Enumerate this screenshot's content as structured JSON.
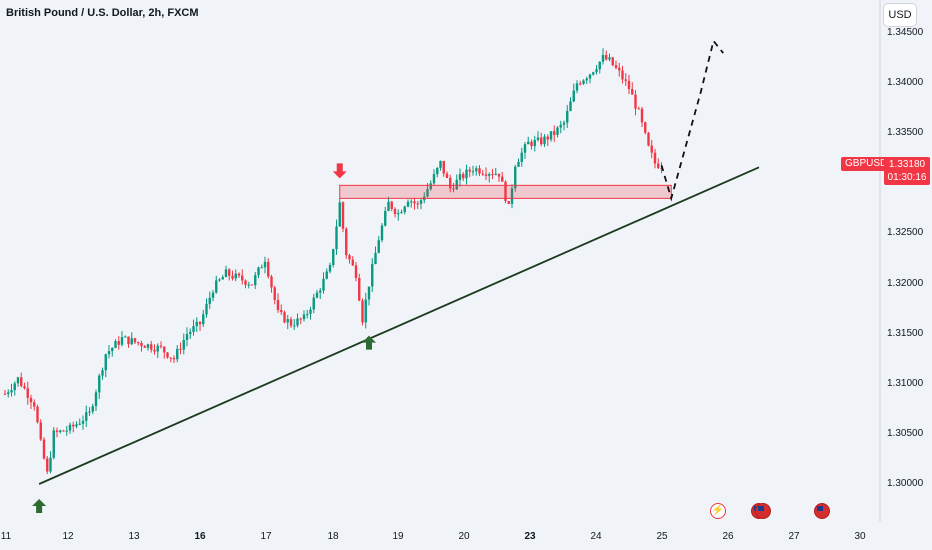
{
  "header": {
    "title": "British Pound / U.S. Dollar, 2h, FXCM"
  },
  "currency_button": {
    "label": "USD"
  },
  "symbol_tag": {
    "label": "GBPUSD"
  },
  "current_price": {
    "value": "1.33180",
    "countdown": "01:30:16"
  },
  "colors": {
    "up": "#089981",
    "down": "#f23645",
    "background": "#f0f3f8",
    "trendline": "#1b3a1e",
    "zone": "#f23645",
    "arrow_up": "#2e6b31",
    "arrow_down": "#f23645"
  },
  "chart_data": {
    "type": "candlestick",
    "title": "British Pound / U.S. Dollar, 2h, FXCM",
    "xlabel": "",
    "ylabel": "",
    "ylim": [
      1.2955,
      1.3455
    ],
    "y_ticks": [
      "1.34500",
      "1.34000",
      "1.33500",
      "1.33000",
      "1.32500",
      "1.32000",
      "1.31500",
      "1.31000",
      "1.30500",
      "1.30000"
    ],
    "x_ticks": [
      {
        "label": "11",
        "bold": false
      },
      {
        "label": "12",
        "bold": false
      },
      {
        "label": "13",
        "bold": false
      },
      {
        "label": "16",
        "bold": true
      },
      {
        "label": "17",
        "bold": false
      },
      {
        "label": "18",
        "bold": false
      },
      {
        "label": "19",
        "bold": false
      },
      {
        "label": "20",
        "bold": false
      },
      {
        "label": "23",
        "bold": true
      },
      {
        "label": "24",
        "bold": false
      },
      {
        "label": "25",
        "bold": false
      },
      {
        "label": "26",
        "bold": false
      },
      {
        "label": "27",
        "bold": false
      },
      {
        "label": "30",
        "bold": false
      }
    ],
    "keypoints": [
      [
        0,
        1.309
      ],
      [
        4,
        1.3105
      ],
      [
        9,
        1.308
      ],
      [
        11,
        1.304
      ],
      [
        13,
        1.301
      ],
      [
        15,
        1.305
      ],
      [
        20,
        1.3055
      ],
      [
        26,
        1.307
      ],
      [
        31,
        1.313
      ],
      [
        36,
        1.3145
      ],
      [
        42,
        1.314
      ],
      [
        48,
        1.3135
      ],
      [
        52,
        1.3125
      ],
      [
        56,
        1.315
      ],
      [
        60,
        1.316
      ],
      [
        64,
        1.3195
      ],
      [
        68,
        1.321
      ],
      [
        72,
        1.3205
      ],
      [
        76,
        1.32
      ],
      [
        80,
        1.3225
      ],
      [
        84,
        1.317
      ],
      [
        88,
        1.316
      ],
      [
        92,
        1.3165
      ],
      [
        96,
        1.319
      ],
      [
        100,
        1.3215
      ],
      [
        103,
        1.328
      ],
      [
        105,
        1.323
      ],
      [
        108,
        1.321
      ],
      [
        110,
        1.3165
      ],
      [
        112,
        1.32
      ],
      [
        115,
        1.3245
      ],
      [
        118,
        1.328
      ],
      [
        121,
        1.327
      ],
      [
        124,
        1.3285
      ],
      [
        127,
        1.3278
      ],
      [
        131,
        1.33
      ],
      [
        134,
        1.332
      ],
      [
        137,
        1.3295
      ],
      [
        140,
        1.3305
      ],
      [
        144,
        1.3315
      ],
      [
        148,
        1.3312
      ],
      [
        152,
        1.331
      ],
      [
        155,
        1.3275
      ],
      [
        157,
        1.332
      ],
      [
        161,
        1.334
      ],
      [
        165,
        1.3342
      ],
      [
        169,
        1.335
      ],
      [
        172,
        1.336
      ],
      [
        176,
        1.34
      ],
      [
        180,
        1.341
      ],
      [
        184,
        1.3425
      ],
      [
        186,
        1.3422
      ],
      [
        189,
        1.341
      ],
      [
        192,
        1.3395
      ],
      [
        195,
        1.337
      ],
      [
        198,
        1.3335
      ],
      [
        200,
        1.332
      ],
      [
        202,
        1.3318
      ]
    ],
    "annotations": {
      "trendline": {
        "from": [
          10.5,
          1.3
        ],
        "to": [
          232,
          1.3316
        ]
      },
      "resistance_zone": {
        "x_from": 103,
        "x_to": 205,
        "y_low": 1.3285,
        "y_high": 1.3298
      },
      "projection": [
        [
          202,
          1.3318
        ],
        [
          205,
          1.3285
        ],
        [
          214,
          1.339
        ],
        [
          218,
          1.3442
        ],
        [
          221,
          1.343
        ]
      ],
      "arrows": [
        {
          "direction": "up",
          "x": 10.5,
          "y": 1.2985
        },
        {
          "direction": "down",
          "x": 103,
          "y": 1.3305
        },
        {
          "direction": "up",
          "x": 112,
          "y": 1.3148
        }
      ]
    }
  }
}
